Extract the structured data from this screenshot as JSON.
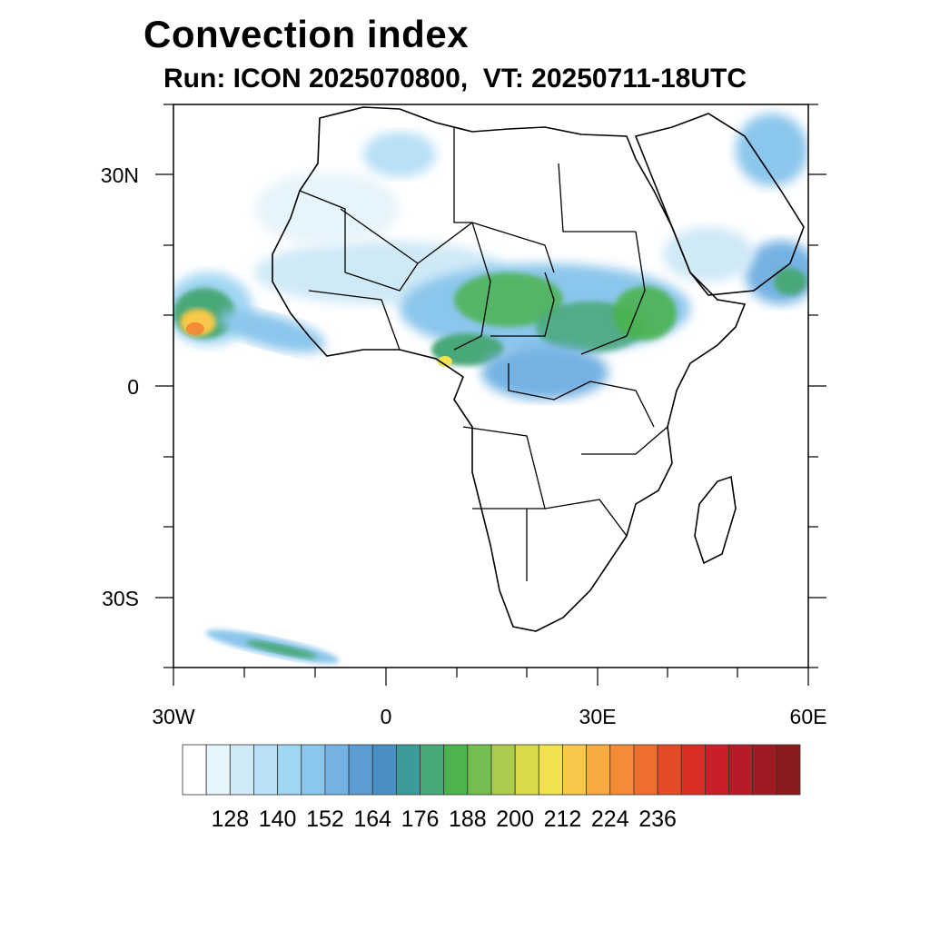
{
  "title": "Convection index",
  "subtitle": "Run: ICON 2025070800,  VT: 20250711-18UTC",
  "axes": {
    "lat_labels": [
      "30N",
      "0",
      "30S"
    ],
    "lon_labels": [
      "30W",
      "0",
      "30E",
      "60E"
    ]
  },
  "map": {
    "extent": {
      "lon_min": -30,
      "lon_max": 60,
      "lat_min": -40,
      "lat_max": 40
    },
    "field": "convection index",
    "regions_with_high_values": [
      "West Africa coast (Atlantic)",
      "Sahel band",
      "Ethiopian Highlands",
      "Central Africa",
      "Arabian Peninsula south"
    ]
  },
  "colorbar": {
    "labels": [
      "128",
      "140",
      "152",
      "164",
      "176",
      "188",
      "200",
      "212",
      "224",
      "236"
    ],
    "colors": [
      "#ffffff",
      "#e6f4fb",
      "#cfe9f7",
      "#b8e0f6",
      "#a1d6f3",
      "#8bc6ec",
      "#74b2e3",
      "#5d9bd3",
      "#4a8fc4",
      "#3f9b9a",
      "#48a878",
      "#4cb34f",
      "#74be4f",
      "#a9cc4c",
      "#d8dc49",
      "#f1e24f",
      "#f7c84a",
      "#f7aa40",
      "#f48b36",
      "#ef6d2d",
      "#e34b27",
      "#d92d26",
      "#c91f28",
      "#b51c27",
      "#a01a24",
      "#8a1a1c"
    ]
  }
}
